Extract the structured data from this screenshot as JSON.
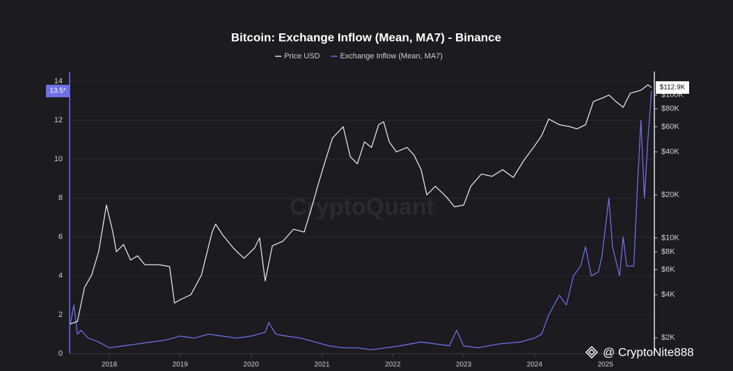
{
  "chart_data": {
    "type": "line",
    "title": "Bitcoin: Exchange Inflow (Mean, MA7) - Binance",
    "watermark": "CryptoQuant",
    "credit": "@ CryptoNite888",
    "left_badge": "13.5*",
    "right_badge": "$112.9K",
    "xlim": [
      2017.44,
      2025.69
    ],
    "xticks": [
      2018,
      2019,
      2020,
      2021,
      2022,
      2023,
      2024,
      2025
    ],
    "ylim": [
      0,
      14.5
    ],
    "yticks": [
      0,
      2,
      4,
      6,
      8,
      10,
      12,
      14
    ],
    "y2lim": [
      1550,
      146000
    ],
    "y2_log": true,
    "y2ticks": [
      {
        "value": 2000,
        "label": "$2K"
      },
      {
        "value": 4000,
        "label": "$4K"
      },
      {
        "value": 6000,
        "label": "$6K"
      },
      {
        "value": 8000,
        "label": "$8K"
      },
      {
        "value": 10000,
        "label": "$10K"
      },
      {
        "value": 20000,
        "label": "$20K"
      },
      {
        "value": 40000,
        "label": "$40K"
      },
      {
        "value": 60000,
        "label": "$60K"
      },
      {
        "value": 80000,
        "label": "$80K"
      },
      {
        "value": 100000,
        "label": "$100K"
      }
    ],
    "grid": true,
    "legend": "top",
    "series": [
      {
        "name": "Price USD",
        "color": "#e6e6e6",
        "axis": "y2",
        "x": [
          2017.45,
          2017.55,
          2017.65,
          2017.75,
          2017.85,
          2017.96,
          2018.05,
          2018.1,
          2018.2,
          2018.3,
          2018.4,
          2018.5,
          2018.6,
          2018.7,
          2018.85,
          2018.92,
          2019.0,
          2019.15,
          2019.3,
          2019.45,
          2019.5,
          2019.6,
          2019.75,
          2019.9,
          2020.05,
          2020.12,
          2020.2,
          2020.3,
          2020.45,
          2020.6,
          2020.75,
          2020.85,
          2020.95,
          2021.05,
          2021.15,
          2021.3,
          2021.4,
          2021.5,
          2021.6,
          2021.7,
          2021.8,
          2021.87,
          2021.95,
          2022.05,
          2022.2,
          2022.3,
          2022.4,
          2022.48,
          2022.6,
          2022.75,
          2022.87,
          2023.0,
          2023.1,
          2023.25,
          2023.4,
          2023.55,
          2023.7,
          2023.85,
          2024.0,
          2024.1,
          2024.2,
          2024.35,
          2024.5,
          2024.6,
          2024.72,
          2024.83,
          2024.95,
          2025.05,
          2025.15,
          2025.25,
          2025.35,
          2025.5,
          2025.6,
          2025.65
        ],
        "values": [
          2500,
          2600,
          4500,
          5500,
          8000,
          17000,
          11000,
          8000,
          9000,
          7000,
          7500,
          6500,
          6500,
          6500,
          6300,
          3500,
          3700,
          4000,
          5500,
          11000,
          12500,
          10500,
          8500,
          7200,
          8500,
          10000,
          5000,
          8800,
          9500,
          11500,
          11000,
          16000,
          24000,
          35000,
          50000,
          60000,
          37000,
          33000,
          47000,
          43000,
          62000,
          65000,
          47000,
          40000,
          43000,
          38000,
          30000,
          20000,
          23000,
          19500,
          16500,
          17000,
          23000,
          28000,
          27000,
          30000,
          26500,
          35000,
          44000,
          52000,
          68000,
          62000,
          60000,
          58000,
          62000,
          90000,
          95000,
          100000,
          90000,
          82000,
          103000,
          108000,
          118000,
          112900
        ]
      },
      {
        "name": "Exchange Inflow (Mean, MA7)",
        "color": "#6f6fe6",
        "axis": "y",
        "x": [
          2017.45,
          2017.5,
          2017.55,
          2017.6,
          2017.7,
          2017.85,
          2018.0,
          2018.2,
          2018.4,
          2018.6,
          2018.8,
          2019.0,
          2019.2,
          2019.4,
          2019.6,
          2019.8,
          2020.0,
          2020.2,
          2020.25,
          2020.35,
          2020.5,
          2020.7,
          2020.9,
          2021.1,
          2021.3,
          2021.5,
          2021.7,
          2021.9,
          2022.1,
          2022.4,
          2022.6,
          2022.8,
          2022.9,
          2023.0,
          2023.2,
          2023.5,
          2023.8,
          2024.0,
          2024.1,
          2024.2,
          2024.35,
          2024.45,
          2024.55,
          2024.65,
          2024.72,
          2024.8,
          2024.9,
          2024.95,
          2025.05,
          2025.1,
          2025.2,
          2025.25,
          2025.3,
          2025.4,
          2025.45,
          2025.5,
          2025.55,
          2025.6,
          2025.65
        ],
        "values": [
          1.5,
          2.5,
          1.0,
          1.2,
          0.8,
          0.6,
          0.3,
          0.4,
          0.5,
          0.6,
          0.7,
          0.9,
          0.8,
          1.0,
          0.9,
          0.8,
          0.9,
          1.1,
          1.6,
          1.0,
          0.9,
          0.8,
          0.6,
          0.4,
          0.3,
          0.3,
          0.2,
          0.3,
          0.4,
          0.6,
          0.5,
          0.4,
          1.2,
          0.4,
          0.3,
          0.5,
          0.6,
          0.8,
          1.0,
          2.0,
          3.0,
          2.5,
          4.0,
          4.5,
          5.5,
          4.0,
          4.2,
          5.0,
          8.0,
          5.5,
          4.0,
          6.0,
          4.5,
          4.5,
          8.5,
          12.0,
          8.0,
          11.0,
          13.5
        ]
      }
    ]
  }
}
